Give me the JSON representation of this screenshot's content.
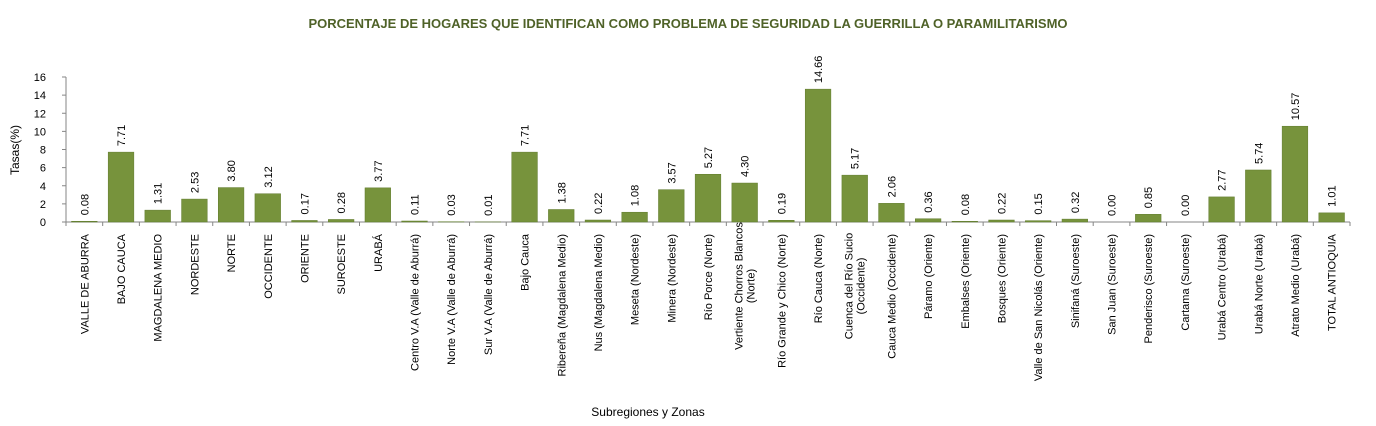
{
  "chart_data": {
    "type": "bar",
    "title": "PORCENTAJE DE HOGARES QUE IDENTIFICAN COMO PROBLEMA DE SEGURIDAD LA GUERRILLA O PARAMILITARISMO",
    "xlabel": "Subregiones y Zonas",
    "ylabel": "Tasas(%)",
    "ylim": [
      0,
      16
    ],
    "yticks": [
      0,
      2,
      4,
      6,
      8,
      10,
      12,
      14,
      16
    ],
    "grid": false,
    "bar_color": "#77933c",
    "categories": [
      [
        "VALLE DE ABURRA"
      ],
      [
        "BAJO CAUCA"
      ],
      [
        "MAGDALENA MEDIO"
      ],
      [
        "NORDESTE"
      ],
      [
        "NORTE"
      ],
      [
        "OCCIDENTE"
      ],
      [
        "ORIENTE"
      ],
      [
        "SUROESTE"
      ],
      [
        "URABÁ"
      ],
      [
        "Centro V.A (Valle de Aburrá)"
      ],
      [
        "Norte V.A (Valle de Aburrá)"
      ],
      [
        "Sur V.A (Valle de Aburrá)"
      ],
      [
        "Bajo Cauca"
      ],
      [
        "Ribereña  (Magdalena Medio)"
      ],
      [
        "Nus  (Magdalena Medio)"
      ],
      [
        "Meseta  (Nordeste)"
      ],
      [
        "Minera  (Nordeste)"
      ],
      [
        "Río Porce   (Norte)"
      ],
      [
        "Vertiente Chorros Blancos",
        "(Norte)"
      ],
      [
        "Río Grande y Chico  (Norte)"
      ],
      [
        "Río Cauca  (Norte)"
      ],
      [
        "Cuenca del Río Sucio",
        "(Occidente)"
      ],
      [
        "Cauca Medio  (Occidente)"
      ],
      [
        "Páramo  (Oriente)"
      ],
      [
        "Embalses  (Oriente)"
      ],
      [
        "Bosques  (Oriente)"
      ],
      [
        "Valle de San Nicolás (Oriente)"
      ],
      [
        "Sinifaná  (Suroeste)"
      ],
      [
        "San Juan  (Suroeste)"
      ],
      [
        "Penderisco  (Suroeste)"
      ],
      [
        "Cartama  (Suroeste)"
      ],
      [
        "Urabá Centro  (Urabá)"
      ],
      [
        "Urabá Norte  (Urabá)"
      ],
      [
        "Atrato Medio  (Urabá)"
      ],
      [
        "TOTAL ANTIOQUIA"
      ]
    ],
    "values": [
      0.08,
      7.71,
      1.31,
      2.53,
      3.8,
      3.12,
      0.17,
      0.28,
      3.77,
      0.11,
      0.03,
      0.01,
      7.71,
      1.38,
      0.22,
      1.08,
      3.57,
      5.27,
      4.3,
      0.19,
      14.66,
      5.17,
      2.06,
      0.36,
      0.08,
      0.22,
      0.15,
      0.32,
      0.0,
      0.85,
      0.0,
      2.77,
      5.74,
      10.57,
      1.01
    ],
    "value_labels": [
      "0.08",
      "7.71",
      "1.31",
      "2.53",
      "3.80",
      "3.12",
      "0.17",
      "0.28",
      "3.77",
      "0.11",
      "0.03",
      "0.01",
      "7.71",
      "1.38",
      "0.22",
      "1.08",
      "3.57",
      "5.27",
      "4.30",
      "0.19",
      "14.66",
      "5.17",
      "2.06",
      "0.36",
      "0.08",
      "0.22",
      "0.15",
      "0.32",
      "0.00",
      "0.85",
      "0.00",
      "2.77",
      "5.74",
      "10.57",
      "1.01"
    ]
  }
}
